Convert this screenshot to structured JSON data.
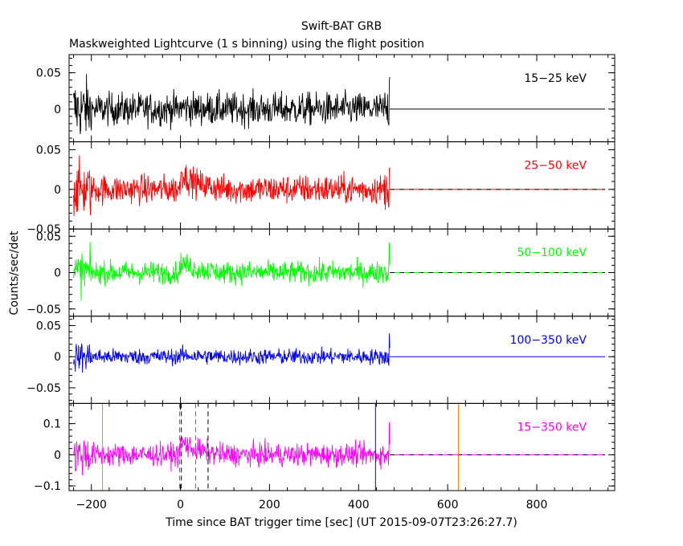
{
  "chart_data": {
    "type": "line",
    "title": "Swift-BAT GRB",
    "subtitle": "Maskweighted Lightcurve (1 s binning) using the flight position",
    "xlabel": "Time since BAT trigger time [sec] (UT 2015-09-07T23:26:27.7)",
    "ylabel": "Counts/sec/det",
    "xlim": [
      -250,
      975
    ],
    "x_ticks": [
      -200,
      0,
      200,
      400,
      600,
      800
    ],
    "x_tick_labels": [
      "−200",
      "0",
      "200",
      "400",
      "600",
      "800"
    ],
    "data_range": [
      -240,
      470
    ],
    "panels": [
      {
        "name": "15−25 keV",
        "color": "#000000",
        "ylim": [
          -0.045,
          0.075
        ],
        "yticks": [
          0,
          0.05
        ],
        "ytick_labels": [
          "0",
          "0.05"
        ],
        "noise": 0.016,
        "pulse": 0.003,
        "dashed_zero": false
      },
      {
        "name": "25−50 keV",
        "color": "#ff0000",
        "ylim": [
          -0.05,
          0.06
        ],
        "yticks": [
          -0.05,
          0,
          0.05
        ],
        "ytick_labels": [
          "−0.05",
          "0",
          "0.05"
        ],
        "noise": 0.013,
        "pulse": 0.022,
        "dashed_zero": true
      },
      {
        "name": "50−100 keV",
        "color": "#00ff00",
        "ylim": [
          -0.06,
          0.06
        ],
        "yticks": [
          -0.05,
          0,
          0.05
        ],
        "ytick_labels": [
          "−0.05",
          "0",
          "0.05"
        ],
        "noise": 0.011,
        "pulse": 0.015,
        "dashed_zero": true
      },
      {
        "name": "100−350 keV",
        "color": "#0000ff",
        "ylim": [
          -0.075,
          0.065
        ],
        "yticks": [
          -0.05,
          0,
          0.05
        ],
        "ytick_labels": [
          "−0.05",
          "0",
          "0.05"
        ],
        "noise": 0.009,
        "pulse": 0.003,
        "dashed_zero": false
      },
      {
        "name": "15−350 keV",
        "color": "#ff00ff",
        "ylim": [
          -0.115,
          0.165
        ],
        "yticks": [
          -0.1,
          0,
          0.1
        ],
        "ytick_labels": [
          "−0.1",
          "0",
          "0.1"
        ],
        "noise": 0.026,
        "pulse": 0.045,
        "dashed_zero": true
      }
    ],
    "markers": [
      {
        "x": -175,
        "color": "#ff8000",
        "style": "solid"
      },
      {
        "x": -2,
        "color": "#00b000",
        "style": "dashed"
      },
      {
        "x": 2,
        "color": "#000000",
        "style": "dashed"
      },
      {
        "x": 34,
        "color": "#00b000",
        "style": "dashed"
      },
      {
        "x": 62,
        "color": "#000000",
        "style": "dashed"
      },
      {
        "x": 438,
        "color": "#0000ff",
        "style": "solid"
      },
      {
        "x": 624,
        "color": "#ff8000",
        "style": "solid"
      }
    ],
    "grid": false,
    "legend": "per-panel label at top-right"
  }
}
